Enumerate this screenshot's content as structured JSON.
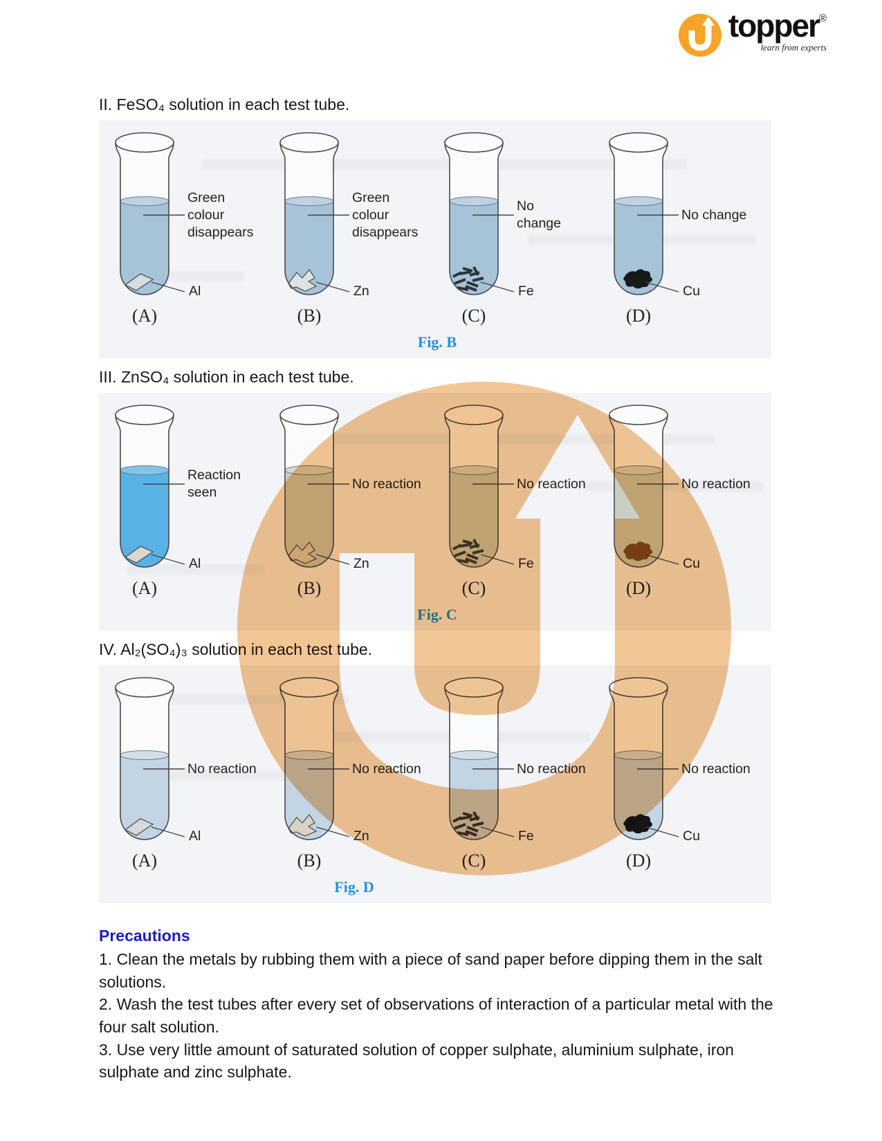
{
  "logo": {
    "u_glyph": "u",
    "brand": "topper",
    "registered": "®",
    "tagline": "learn from experts"
  },
  "colors": {
    "logo_orange": "#f5a428",
    "watermark_tan": "#f3c695",
    "caption_blue": "#2b8fd6",
    "heading_blue": "#1d1dc0",
    "glass_outline": "#4a4a4a"
  },
  "sections": [
    {
      "heading": "II. FeSO₄ solution in each test tube.",
      "figure": {
        "caption": "Fig. B",
        "tubes": [
          {
            "tube_label": "(A)",
            "metal": "Al",
            "annotation": "Green\ncolour\ndisappears",
            "metal_shape": "foil",
            "metal_color": "#d6dde1",
            "solution_color": "#a6c3d8"
          },
          {
            "tube_label": "(B)",
            "metal": "Zn",
            "annotation": "Green\ncolour\ndisappears",
            "metal_shape": "jagged",
            "metal_color": "#dde2e4",
            "solution_color": "#a6c3d8"
          },
          {
            "tube_label": "(C)",
            "metal": "Fe",
            "annotation": "No\nchange",
            "metal_shape": "rods",
            "metal_color": "#2f3336",
            "solution_color": "#a6c3d8"
          },
          {
            "tube_label": "(D)",
            "metal": "Cu",
            "annotation": "No change",
            "metal_shape": "blob",
            "metal_color": "#17191b",
            "solution_color": "#a6c3d8"
          }
        ]
      }
    },
    {
      "heading": "III. ZnSO₄ solution in each test tube.",
      "figure": {
        "caption": "Fig. C",
        "tubes": [
          {
            "tube_label": "(A)",
            "metal": "Al",
            "annotation": "Reaction\nseen",
            "metal_shape": "foil",
            "metal_color": "#d8d8d2",
            "solution_color": "#58b2e6"
          },
          {
            "tube_label": "(B)",
            "metal": "Zn",
            "annotation": "No reaction",
            "metal_shape": "jagged",
            "metal_color": "#d8d3c0",
            "solution_color": "#c9cfc3"
          },
          {
            "tube_label": "(C)",
            "metal": "Fe",
            "annotation": "No reaction",
            "metal_shape": "rods",
            "metal_color": "#3f4038",
            "solution_color": "#c9cfc3"
          },
          {
            "tube_label": "(D)",
            "metal": "Cu",
            "annotation": "No reaction",
            "metal_shape": "blob",
            "metal_color": "#7d5023",
            "solution_color": "#c9cfc3"
          }
        ]
      }
    },
    {
      "heading": "IV. Al₂(SO₄)₃ solution in each test tube.",
      "figure": {
        "caption": "Fig. D",
        "tubes": [
          {
            "tube_label": "(A)",
            "metal": "Al",
            "annotation": "No reaction",
            "metal_shape": "foil",
            "metal_color": "#d4dade",
            "solution_color": "#c3d4e3"
          },
          {
            "tube_label": "(B)",
            "metal": "Zn",
            "annotation": "No reaction",
            "metal_shape": "jagged",
            "metal_color": "#d8d3c4",
            "solution_color": "#c3d4e3"
          },
          {
            "tube_label": "(C)",
            "metal": "Fe",
            "annotation": "No reaction",
            "metal_shape": "rods",
            "metal_color": "#3a3632",
            "solution_color": "#c3d4e3"
          },
          {
            "tube_label": "(D)",
            "metal": "Cu",
            "annotation": "No reaction",
            "metal_shape": "blob",
            "metal_color": "#141618",
            "solution_color": "#c3d4e3"
          }
        ]
      }
    }
  ],
  "precautions": {
    "heading": "Precautions",
    "items": [
      "1. Clean the metals by rubbing them with a piece of sand paper before dipping them in the salt solutions.",
      "2. Wash the test tubes after every set of observations of interaction of a particular metal with the four salt solution.",
      "3. Use very little amount of saturated solution of copper sulphate, aluminium sulphate, iron sulphate and zinc sulphate."
    ]
  }
}
